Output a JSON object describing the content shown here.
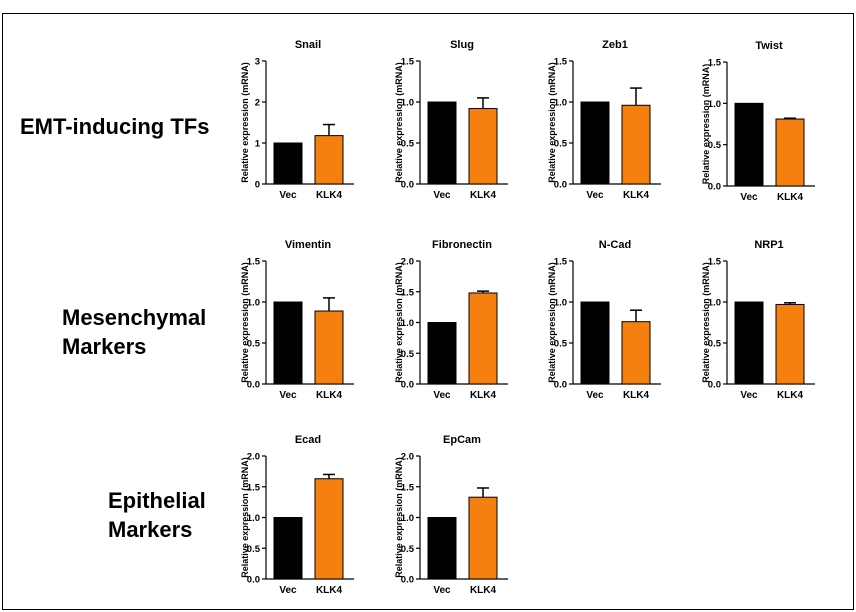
{
  "row_labels": [
    {
      "lines": [
        "EMT-inducing TFs"
      ]
    },
    {
      "lines": [
        "Mesenchymal",
        "Markers"
      ]
    },
    {
      "lines": [
        "Epithelial",
        "Markers"
      ]
    }
  ],
  "colors": {
    "vec": "#000000",
    "klk4": "#f57f0f",
    "axis": "#000000"
  },
  "chart_data": [
    {
      "type": "bar",
      "title": "Snail",
      "ylabel": "Relative expression  (mRNA)",
      "categories": [
        "Vec",
        "KLK4"
      ],
      "values": [
        1.0,
        1.18
      ],
      "errors": [
        0,
        0.27
      ],
      "ylim": [
        0,
        3
      ],
      "yticks": [
        "0",
        "1",
        "2",
        "3"
      ]
    },
    {
      "type": "bar",
      "title": "Slug",
      "ylabel": "Relative expression  (mRNA)",
      "categories": [
        "Vec",
        "KLK4"
      ],
      "values": [
        1.0,
        0.92
      ],
      "errors": [
        0,
        0.13
      ],
      "ylim": [
        0,
        1.5
      ],
      "yticks": [
        "0.0",
        "0.5",
        "1.0",
        "1.5"
      ]
    },
    {
      "type": "bar",
      "title": "Zeb1",
      "ylabel": "Relative expression  (mRNA)",
      "categories": [
        "Vec",
        "KLK4"
      ],
      "values": [
        1.0,
        0.96
      ],
      "errors": [
        0,
        0.21
      ],
      "ylim": [
        0,
        1.5
      ],
      "yticks": [
        "0.0",
        "0.5",
        "1.0",
        "1.5"
      ]
    },
    {
      "type": "bar",
      "title": "Twist",
      "ylabel": "Relative expression  (mRNA)",
      "categories": [
        "Vec",
        "KLK4"
      ],
      "values": [
        1.0,
        0.81
      ],
      "errors": [
        0,
        0.01
      ],
      "ylim": [
        0,
        1.5
      ],
      "yticks": [
        "0.0",
        "0.5",
        "1.0",
        "1.5"
      ]
    },
    {
      "type": "bar",
      "title": "Vimentin",
      "ylabel": "Relative expression  (mRNA)",
      "categories": [
        "Vec",
        "KLK4"
      ],
      "values": [
        1.0,
        0.89
      ],
      "errors": [
        0,
        0.16
      ],
      "ylim": [
        0,
        1.5
      ],
      "yticks": [
        "0.0",
        "0.5",
        "1.0",
        "1.5"
      ]
    },
    {
      "type": "bar",
      "title": "Fibronectin",
      "ylabel": "Relative expression  (mRNA)",
      "categories": [
        "Vec",
        "KLK4"
      ],
      "values": [
        1.0,
        1.48
      ],
      "errors": [
        0,
        0.03
      ],
      "ylim": [
        0,
        2.0
      ],
      "yticks": [
        "0.0",
        "0.5",
        "1.0",
        "1.5",
        "2.0"
      ]
    },
    {
      "type": "bar",
      "title": "N-Cad",
      "ylabel": "Relative expression  (mRNA)",
      "categories": [
        "Vec",
        "KLK4"
      ],
      "values": [
        1.0,
        0.76
      ],
      "errors": [
        0,
        0.14
      ],
      "ylim": [
        0,
        1.5
      ],
      "yticks": [
        "0.0",
        "0.5",
        "1.0",
        "1.5"
      ]
    },
    {
      "type": "bar",
      "title": "NRP1",
      "ylabel": "Relative expression  (mRNA)",
      "categories": [
        "Vec",
        "KLK4"
      ],
      "values": [
        1.0,
        0.97
      ],
      "errors": [
        0,
        0.02
      ],
      "ylim": [
        0,
        1.5
      ],
      "yticks": [
        "0.0",
        "0.5",
        "1.0",
        "1.5"
      ]
    },
    {
      "type": "bar",
      "title": "Ecad",
      "ylabel": "Relative expression  (mRNA)",
      "categories": [
        "Vec",
        "KLK4"
      ],
      "values": [
        1.0,
        1.63
      ],
      "errors": [
        0,
        0.07
      ],
      "ylim": [
        0,
        2.0
      ],
      "yticks": [
        "0.0",
        "0.5",
        "1.0",
        "1.5",
        "2.0"
      ]
    },
    {
      "type": "bar",
      "title": "EpCam",
      "ylabel": "Relative expression  (mRNA)",
      "categories": [
        "Vec",
        "KLK4"
      ],
      "values": [
        1.0,
        1.33
      ],
      "errors": [
        0,
        0.15
      ],
      "ylim": [
        0,
        2.0
      ],
      "yticks": [
        "0.0",
        "0.5",
        "1.0",
        "1.5",
        "2.0"
      ]
    }
  ]
}
